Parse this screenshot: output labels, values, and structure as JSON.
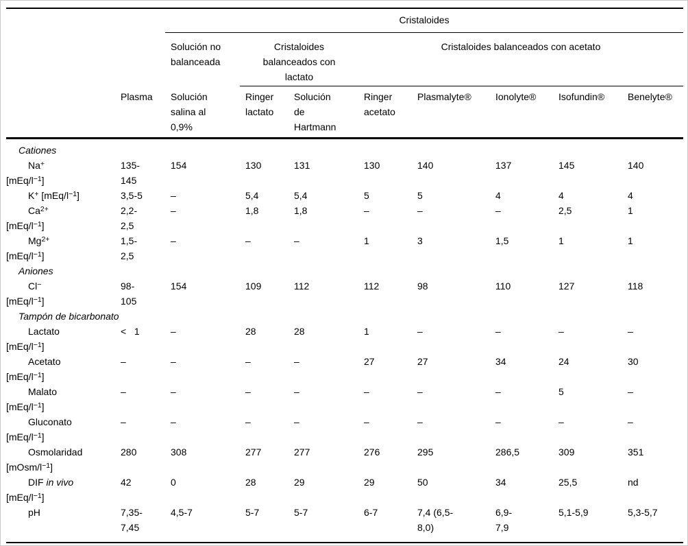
{
  "table": {
    "top_header": "Cristaloides",
    "group_headers": {
      "unbalanced": "Solución no\nbalanceada",
      "lactate": "Cristaloides\nbalanceados con\nlactato",
      "acetate": "Cristaloides balanceados con acetato"
    },
    "columns": [
      "Plasma",
      "Solución\nsalina al\n0,9%",
      "Ringer\nlactato",
      "Solución\nde\nHartmann",
      "Ringer\nacetato",
      "Plasmalyte®",
      "Ionolyte®",
      "Isofundin®",
      "Benelyte®"
    ],
    "rows": [
      {
        "kind": "section",
        "label": "Cationes"
      },
      {
        "kind": "item",
        "label_parts": [
          "Na",
          {
            "s": "+"
          },
          "\n[mEq/l",
          {
            "s": "−1"
          },
          "]"
        ],
        "values": [
          "135-\n145",
          "154",
          "130",
          "131",
          "130",
          "140",
          "137",
          "145",
          "140"
        ]
      },
      {
        "kind": "item",
        "label_parts": [
          "K",
          {
            "s": "+"
          },
          " [mEq/l",
          {
            "s": "−1"
          },
          "]"
        ],
        "values": [
          "3,5-5",
          "–",
          "5,4",
          "5,4",
          "5",
          "5",
          "4",
          "4",
          "4"
        ]
      },
      {
        "kind": "item",
        "label_parts": [
          "Ca",
          {
            "s": "2+"
          },
          "\n[mEq/l",
          {
            "s": "−1"
          },
          "]"
        ],
        "values": [
          "2,2-\n2,5",
          "–",
          "1,8",
          "1,8",
          "–",
          "–",
          "–",
          "2,5",
          "1"
        ]
      },
      {
        "kind": "item",
        "label_parts": [
          "Mg",
          {
            "s": "2+"
          },
          "\n[mEq/l",
          {
            "s": "−1"
          },
          "]"
        ],
        "values": [
          "1,5-\n2,5",
          "–",
          "–",
          "–",
          "1",
          "3",
          "1,5",
          "1",
          "1"
        ]
      },
      {
        "kind": "section",
        "label": "Aniones"
      },
      {
        "kind": "item",
        "label_parts": [
          "Cl",
          {
            "s": "−"
          },
          "\n[mEq/l",
          {
            "s": "−1"
          },
          "]"
        ],
        "values": [
          "98-\n105",
          "154",
          "109",
          "112",
          "112",
          "98",
          "110",
          "127",
          "118"
        ]
      },
      {
        "kind": "section",
        "label": "Tampón de bicarbonato"
      },
      {
        "kind": "item",
        "label_parts": [
          "Lactato\n[mEq/l",
          {
            "s": "−1"
          },
          "]"
        ],
        "values": [
          "<   1",
          "–",
          "28",
          "28",
          "1",
          "–",
          "–",
          "–",
          "–"
        ]
      },
      {
        "kind": "item",
        "label_parts": [
          "Acetato\n[mEq/l",
          {
            "s": "−1"
          },
          "]"
        ],
        "values": [
          "–",
          "–",
          "–",
          "–",
          "27",
          "27",
          "34",
          "24",
          "30"
        ]
      },
      {
        "kind": "item",
        "label_parts": [
          "Malato\n[mEq/l",
          {
            "s": "−1"
          },
          "]"
        ],
        "values": [
          "–",
          "–",
          "–",
          "–",
          "–",
          "–",
          "–",
          "5",
          "–"
        ]
      },
      {
        "kind": "item",
        "label_parts": [
          "Gluconato\n[mEq/l",
          {
            "s": "−1"
          },
          "]"
        ],
        "values": [
          "–",
          "–",
          "–",
          "–",
          "–",
          "–",
          "–",
          "–",
          "–"
        ]
      },
      {
        "kind": "item",
        "label_parts": [
          "Osmolaridad\n[mOsm/l",
          {
            "s": "−1"
          },
          "]"
        ],
        "values": [
          "280",
          "308",
          "277",
          "277",
          "276",
          "295",
          "286,5",
          "309",
          "351"
        ]
      },
      {
        "kind": "item",
        "label_parts": [
          "DIF ",
          {
            "i": "in vivo"
          },
          "\n[mEq/l",
          {
            "s": "−1"
          },
          "]"
        ],
        "values": [
          "42",
          "0",
          "28",
          "29",
          "29",
          "50",
          "34",
          "25,5",
          "nd"
        ]
      },
      {
        "kind": "item",
        "label_parts": [
          "pH"
        ],
        "values": [
          "7,35-\n7,45",
          "4,5-7",
          "5-7",
          "5-7",
          "6-7",
          "7,4 (6,5-\n8,0)",
          "6,9-\n7,9",
          "5,1-5,9",
          "5,3-5,7"
        ]
      }
    ]
  }
}
